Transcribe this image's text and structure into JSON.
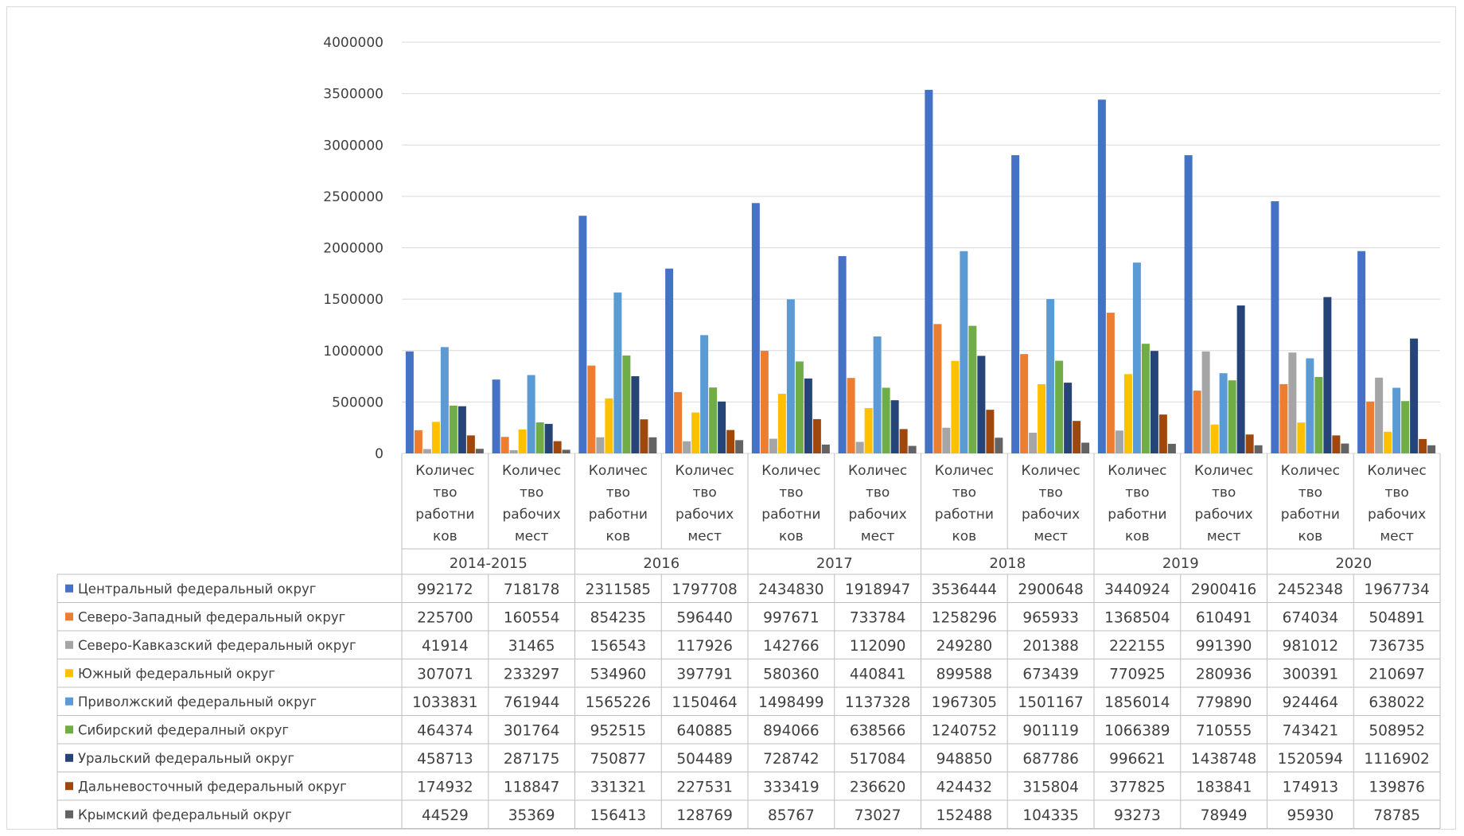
{
  "chart_data": {
    "type": "bar",
    "title": "",
    "xlabel": "",
    "ylabel": "",
    "ylim": [
      0,
      4000000
    ],
    "yticks": [
      "0",
      "500000",
      "1000000",
      "1500000",
      "2000000",
      "2500000",
      "3000000",
      "3500000",
      "4000000"
    ],
    "grid": true,
    "legend_placement": "data-table-left",
    "groups": [
      "2014-2015",
      "2016",
      "2017",
      "2018",
      "2019",
      "2020"
    ],
    "subcategories": [
      [
        "Количес",
        "тво",
        "работни",
        "ков"
      ],
      [
        "Количес",
        "тво",
        "рабочих",
        "мест"
      ]
    ],
    "series": [
      {
        "name": "Центральный федеральный округ",
        "color": "#4472c4",
        "values": [
          992172,
          718178,
          2311585,
          1797708,
          2434830,
          1918947,
          3536444,
          2900648,
          3440924,
          2900416,
          2452348,
          1967734
        ]
      },
      {
        "name": "Северо-Западный федеральный округ",
        "color": "#ed7d31",
        "values": [
          225700,
          160554,
          854235,
          596440,
          997671,
          733784,
          1258296,
          965933,
          1368504,
          610491,
          674034,
          504891
        ]
      },
      {
        "name": "Северо-Кавказский федеральный округ",
        "color": "#a5a5a5",
        "values": [
          41914,
          31465,
          156543,
          117926,
          142766,
          112090,
          249280,
          201388,
          222155,
          991390,
          981012,
          736735
        ]
      },
      {
        "name": "Южный федеральный округ",
        "color": "#ffc000",
        "values": [
          307071,
          233297,
          534960,
          397791,
          580360,
          440841,
          899588,
          673439,
          770925,
          280936,
          300391,
          210697
        ]
      },
      {
        "name": "Приволжский федеральный округ",
        "color": "#5b9bd5",
        "values": [
          1033831,
          761944,
          1565226,
          1150464,
          1498499,
          1137328,
          1967305,
          1501167,
          1856014,
          779890,
          924464,
          638022
        ]
      },
      {
        "name": "Сибирский федералный округ",
        "color": "#70ad47",
        "values": [
          464374,
          301764,
          952515,
          640885,
          894066,
          638566,
          1240752,
          901119,
          1066389,
          710555,
          743421,
          508952
        ]
      },
      {
        "name": "Уральский федеральный округ",
        "color": "#264478",
        "values": [
          458713,
          287175,
          750877,
          504489,
          728742,
          517084,
          948850,
          687786,
          996621,
          1438748,
          1520594,
          1116902
        ]
      },
      {
        "name": "Дальневосточный федеральный округ",
        "color": "#9e480e",
        "values": [
          174932,
          118847,
          331321,
          227531,
          333419,
          236620,
          424432,
          315804,
          377825,
          183841,
          174913,
          139876
        ]
      },
      {
        "name": "Крымский федеральный округ",
        "color": "#636363",
        "values": [
          44529,
          35369,
          156413,
          128769,
          85767,
          73027,
          152488,
          104335,
          93273,
          78949,
          95930,
          78785
        ]
      }
    ]
  }
}
